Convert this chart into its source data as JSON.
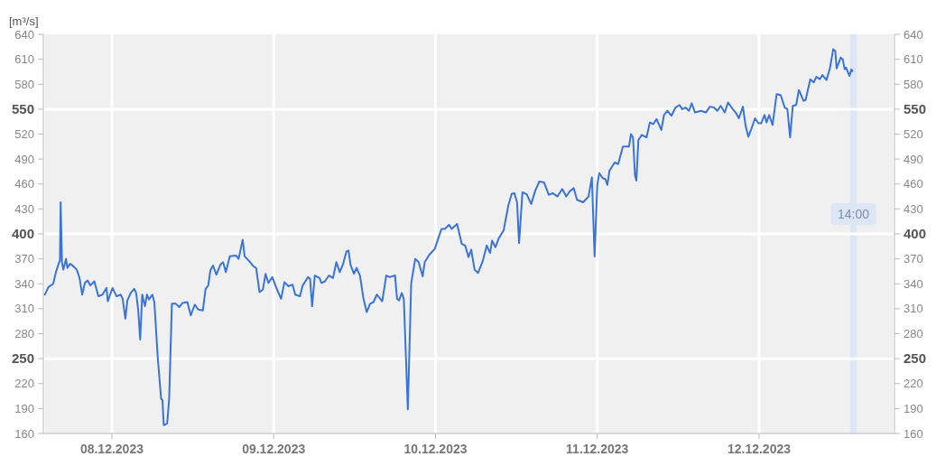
{
  "chart_data": {
    "type": "line",
    "ylabel": "[m³/s]",
    "xlim": [
      "2023-12-07T13:50",
      "2023-12-12T20:05"
    ],
    "xticks": [
      {
        "value": "2023-12-08",
        "label": "08.12.2023"
      },
      {
        "value": "2023-12-09",
        "label": "09.12.2023"
      },
      {
        "value": "2023-12-10",
        "label": "10.12.2023"
      },
      {
        "value": "2023-12-11",
        "label": "11.12.2023"
      },
      {
        "value": "2023-12-12",
        "label": "12.12.2023"
      }
    ],
    "ylim": [
      160,
      640
    ],
    "yticks": [
      160,
      190,
      220,
      250,
      280,
      310,
      340,
      370,
      400,
      430,
      460,
      490,
      520,
      550,
      580,
      610,
      640
    ],
    "y2lim": [
      160,
      640
    ],
    "y2ticks": [
      160,
      190,
      220,
      250,
      280,
      310,
      340,
      370,
      400,
      430,
      460,
      490,
      520,
      550,
      580,
      610,
      640
    ],
    "grid": "x",
    "line_style": "solid",
    "ref_lines": [
      {
        "axis": "y",
        "value": 250,
        "color": "#ffffff"
      },
      {
        "axis": "y",
        "value": 400,
        "color": "#ffffff"
      },
      {
        "axis": "y",
        "value": 550,
        "color": "#ffffff"
      }
    ],
    "bands": [
      {
        "axis": "x",
        "from": "2023-12-12T13:30",
        "to": "2023-12-12T14:30",
        "label": "14:00",
        "color": "#dce6f5"
      }
    ],
    "series": [
      {
        "color": "#3a73d9",
        "x": [
          "2023-12-07T14:00",
          "2023-12-07T14:36",
          "2023-12-07T15:18",
          "2023-12-07T15:42",
          "2023-12-07T16:06",
          "2023-12-07T16:18",
          "2023-12-07T16:24",
          "2023-12-07T16:36",
          "2023-12-07T16:48",
          "2023-12-07T17:12",
          "2023-12-07T17:24",
          "2023-12-07T17:48",
          "2023-12-07T18:18",
          "2023-12-07T18:48",
          "2023-12-07T19:12",
          "2023-12-07T19:36",
          "2023-12-07T20:00",
          "2023-12-07T20:24",
          "2023-12-07T20:48",
          "2023-12-07T21:24",
          "2023-12-07T22:00",
          "2023-12-07T22:36",
          "2023-12-07T23:12",
          "2023-12-07T23:24",
          "2023-12-08T00:06",
          "2023-12-08T00:42",
          "2023-12-08T01:18",
          "2023-12-08T01:36",
          "2023-12-08T02:00",
          "2023-12-08T02:18",
          "2023-12-08T02:48",
          "2023-12-08T03:18",
          "2023-12-08T03:36",
          "2023-12-08T03:54",
          "2023-12-08T04:12",
          "2023-12-08T04:30",
          "2023-12-08T04:54",
          "2023-12-08T05:12",
          "2023-12-08T05:30",
          "2023-12-08T06:00",
          "2023-12-08T06:18",
          "2023-12-08T06:48",
          "2023-12-08T07:18",
          "2023-12-08T07:30",
          "2023-12-08T07:42",
          "2023-12-08T08:12",
          "2023-12-08T08:30",
          "2023-12-08T08:54",
          "2023-12-08T09:30",
          "2023-12-08T10:00",
          "2023-12-08T10:30",
          "2023-12-08T11:12",
          "2023-12-08T11:42",
          "2023-12-08T12:18",
          "2023-12-08T12:48",
          "2023-12-08T13:30",
          "2023-12-08T13:54",
          "2023-12-08T14:18",
          "2023-12-08T14:36",
          "2023-12-08T15:00",
          "2023-12-08T15:30",
          "2023-12-08T16:06",
          "2023-12-08T16:30",
          "2023-12-08T16:54",
          "2023-12-08T17:30",
          "2023-12-08T18:24",
          "2023-12-08T18:48",
          "2023-12-08T19:24",
          "2023-12-08T19:42",
          "2023-12-08T20:24",
          "2023-12-08T21:00",
          "2023-12-08T21:24",
          "2023-12-08T21:54",
          "2023-12-08T22:24",
          "2023-12-08T22:48",
          "2023-12-08T23:12",
          "2023-12-08T23:48",
          "2023-12-09T00:24",
          "2023-12-09T01:06",
          "2023-12-09T01:36",
          "2023-12-09T02:12",
          "2023-12-09T02:48",
          "2023-12-09T03:12",
          "2023-12-09T03:54",
          "2023-12-09T04:18",
          "2023-12-09T05:06",
          "2023-12-09T05:24",
          "2023-12-09T05:42",
          "2023-12-09T06:06",
          "2023-12-09T06:48",
          "2023-12-09T07:06",
          "2023-12-09T07:36",
          "2023-12-09T08:12",
          "2023-12-09T08:48",
          "2023-12-09T09:18",
          "2023-12-09T09:48",
          "2023-12-09T10:18",
          "2023-12-09T10:48",
          "2023-12-09T11:06",
          "2023-12-09T11:24",
          "2023-12-09T11:54",
          "2023-12-09T12:18",
          "2023-12-09T12:48",
          "2023-12-09T13:18",
          "2023-12-09T13:48",
          "2023-12-09T14:18",
          "2023-12-09T14:48",
          "2023-12-09T15:18",
          "2023-12-09T15:42",
          "2023-12-09T16:06",
          "2023-12-09T16:42",
          "2023-12-09T17:12",
          "2023-12-09T18:00",
          "2023-12-09T18:18",
          "2023-12-09T18:36",
          "2023-12-09T19:00",
          "2023-12-09T19:18",
          "2023-12-09T19:54",
          "2023-12-09T20:24",
          "2023-12-09T21:00",
          "2023-12-09T21:30",
          "2023-12-09T22:06",
          "2023-12-09T22:24",
          "2023-12-09T23:06",
          "2023-12-09T23:54",
          "2023-12-10T00:18",
          "2023-12-10T00:54",
          "2023-12-10T01:24",
          "2023-12-10T02:00",
          "2023-12-10T02:24",
          "2023-12-10T03:12",
          "2023-12-10T03:54",
          "2023-12-10T04:24",
          "2023-12-10T04:54",
          "2023-12-10T05:18",
          "2023-12-10T05:48",
          "2023-12-10T06:18",
          "2023-12-10T07:00",
          "2023-12-10T07:36",
          "2023-12-10T08:06",
          "2023-12-10T08:24",
          "2023-12-10T08:54",
          "2023-12-10T09:24",
          "2023-12-10T10:06",
          "2023-12-10T10:48",
          "2023-12-10T11:18",
          "2023-12-10T11:42",
          "2023-12-10T12:06",
          "2023-12-10T12:24",
          "2023-12-10T12:54",
          "2023-12-10T13:30",
          "2023-12-10T14:12",
          "2023-12-10T14:48",
          "2023-12-10T15:24",
          "2023-12-10T16:06",
          "2023-12-10T16:48",
          "2023-12-10T17:24",
          "2023-12-10T18:06",
          "2023-12-10T18:48",
          "2023-12-10T19:24",
          "2023-12-10T19:54",
          "2023-12-10T20:30",
          "2023-12-10T21:00",
          "2023-12-10T21:54",
          "2023-12-10T22:42",
          "2023-12-10T23:12",
          "2023-12-10T23:36",
          "2023-12-11T00:00",
          "2023-12-11T00:18",
          "2023-12-11T00:48",
          "2023-12-11T01:12",
          "2023-12-11T01:30",
          "2023-12-11T01:48",
          "2023-12-11T02:36",
          "2023-12-11T03:06",
          "2023-12-11T03:48",
          "2023-12-11T04:18",
          "2023-12-11T04:42",
          "2023-12-11T05:00",
          "2023-12-11T05:18",
          "2023-12-11T05:36",
          "2023-12-11T05:48",
          "2023-12-11T06:06",
          "2023-12-11T06:36",
          "2023-12-11T07:18",
          "2023-12-11T07:48",
          "2023-12-11T08:18",
          "2023-12-11T08:48",
          "2023-12-11T09:30",
          "2023-12-11T09:54",
          "2023-12-11T10:24",
          "2023-12-11T11:00",
          "2023-12-11T11:36",
          "2023-12-11T12:12",
          "2023-12-11T12:36",
          "2023-12-11T13:06",
          "2023-12-11T13:36",
          "2023-12-11T14:00",
          "2023-12-11T14:30",
          "2023-12-11T15:24",
          "2023-12-11T16:06",
          "2023-12-11T16:42",
          "2023-12-11T17:18",
          "2023-12-11T17:48",
          "2023-12-11T18:18",
          "2023-12-11T18:54",
          "2023-12-11T19:24",
          "2023-12-11T20:06",
          "2023-12-11T20:36",
          "2023-12-11T21:00",
          "2023-12-11T21:36",
          "2023-12-11T22:00",
          "2023-12-11T22:24",
          "2023-12-11T22:48",
          "2023-12-11T23:24",
          "2023-12-11T23:54",
          "2023-12-12T00:18",
          "2023-12-12T00:48",
          "2023-12-12T01:06",
          "2023-12-12T01:30",
          "2023-12-12T02:00",
          "2023-12-12T02:36",
          "2023-12-12T03:12",
          "2023-12-12T03:48",
          "2023-12-12T04:12",
          "2023-12-12T04:36",
          "2023-12-12T05:00",
          "2023-12-12T05:30",
          "2023-12-12T05:54",
          "2023-12-12T06:36",
          "2023-12-12T06:54",
          "2023-12-12T07:36",
          "2023-12-12T08:06",
          "2023-12-12T08:30",
          "2023-12-12T09:00",
          "2023-12-12T09:24",
          "2023-12-12T10:00",
          "2023-12-12T10:30",
          "2023-12-12T11:00",
          "2023-12-12T11:18",
          "2023-12-12T11:30",
          "2023-12-12T12:06",
          "2023-12-12T12:24",
          "2023-12-12T12:42",
          "2023-12-12T12:54",
          "2023-12-12T13:24",
          "2023-12-12T13:42",
          "2023-12-12T13:54"
        ],
        "values": [
          326,
          336,
          340,
          354,
          364,
          368,
          438,
          366,
          357,
          370,
          359,
          364,
          361,
          357,
          347,
          327,
          341,
          344,
          338,
          343,
          325,
          327,
          335,
          319,
          335,
          325,
          327,
          322,
          298,
          320,
          329,
          334,
          329,
          309,
          273,
          327,
          313,
          327,
          321,
          327,
          318,
          252,
          202,
          200,
          170,
          172,
          202,
          316,
          316,
          312,
          317,
          318,
          302,
          315,
          309,
          308,
          334,
          338,
          356,
          362,
          351,
          363,
          366,
          354,
          373,
          374,
          370,
          393,
          373,
          367,
          361,
          359,
          330,
          333,
          352,
          341,
          348,
          335,
          322,
          342,
          337,
          339,
          327,
          325,
          338,
          348,
          346,
          313,
          350,
          347,
          341,
          343,
          350,
          347,
          366,
          354,
          364,
          379,
          380,
          363,
          352,
          359,
          350,
          323,
          306,
          316,
          318,
          327,
          323,
          319,
          350,
          348,
          350,
          322,
          320,
          329,
          322,
          189,
          341,
          370,
          366,
          349,
          366,
          375,
          382,
          392,
          406,
          406,
          411,
          406,
          412,
          388,
          386,
          372,
          381,
          357,
          353,
          367,
          386,
          377,
          392,
          384,
          395,
          404,
          434,
          448,
          449,
          438,
          389,
          450,
          448,
          436,
          452,
          463,
          462,
          447,
          449,
          445,
          454,
          445,
          451,
          455,
          441,
          438,
          445,
          468,
          373,
          459,
          473,
          467,
          466,
          459,
          476,
          486,
          484,
          505,
          505,
          505,
          520,
          516,
          470,
          464,
          513,
          519,
          516,
          534,
          532,
          538,
          525,
          543,
          548,
          542,
          552,
          555,
          550,
          552,
          548,
          557,
          546,
          548,
          546,
          553,
          552,
          548,
          554,
          546,
          558,
          550,
          545,
          539,
          553,
          530,
          517,
          525,
          539,
          533,
          533,
          543,
          534,
          543,
          531,
          568,
          567,
          552,
          550,
          516,
          554,
          555,
          573,
          560,
          561,
          586,
          582,
          589,
          586,
          591,
          585,
          599,
          622,
          620,
          599,
          612,
          610,
          598,
          600,
          590,
          598,
          595
        ]
      }
    ]
  }
}
